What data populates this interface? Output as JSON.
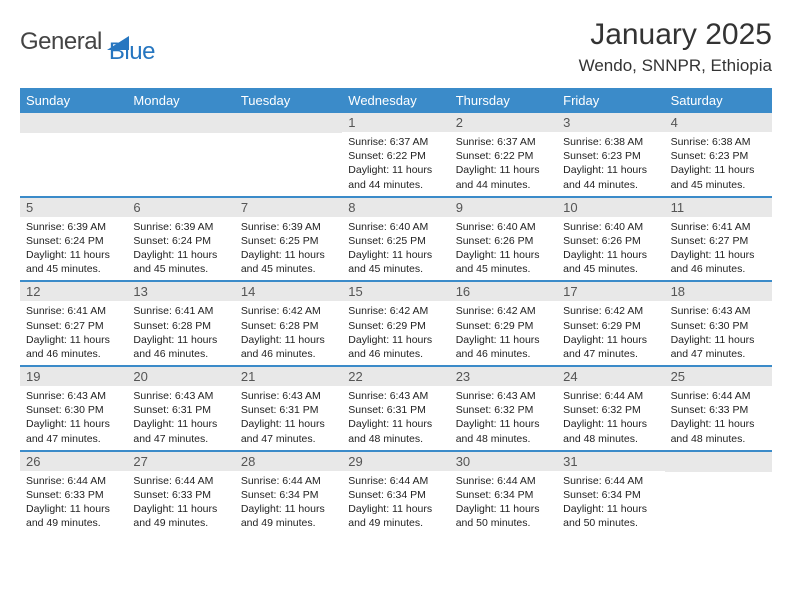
{
  "logo": {
    "text1": "General",
    "text2": "Blue"
  },
  "title": "January 2025",
  "location": "Wendo, SNNPR, Ethiopia",
  "weekdays": [
    "Sunday",
    "Monday",
    "Tuesday",
    "Wednesday",
    "Thursday",
    "Friday",
    "Saturday"
  ],
  "colors": {
    "header_bg": "#3b8bc9",
    "daynum_bg": "#e8e8e8",
    "rule": "#3b8bc9",
    "logo_blue": "#2676c0"
  },
  "weeks": [
    [
      null,
      null,
      null,
      {
        "d": "1",
        "sr": "6:37 AM",
        "ss": "6:22 PM",
        "dl": "11 hours and 44 minutes."
      },
      {
        "d": "2",
        "sr": "6:37 AM",
        "ss": "6:22 PM",
        "dl": "11 hours and 44 minutes."
      },
      {
        "d": "3",
        "sr": "6:38 AM",
        "ss": "6:23 PM",
        "dl": "11 hours and 44 minutes."
      },
      {
        "d": "4",
        "sr": "6:38 AM",
        "ss": "6:23 PM",
        "dl": "11 hours and 45 minutes."
      }
    ],
    [
      {
        "d": "5",
        "sr": "6:39 AM",
        "ss": "6:24 PM",
        "dl": "11 hours and 45 minutes."
      },
      {
        "d": "6",
        "sr": "6:39 AM",
        "ss": "6:24 PM",
        "dl": "11 hours and 45 minutes."
      },
      {
        "d": "7",
        "sr": "6:39 AM",
        "ss": "6:25 PM",
        "dl": "11 hours and 45 minutes."
      },
      {
        "d": "8",
        "sr": "6:40 AM",
        "ss": "6:25 PM",
        "dl": "11 hours and 45 minutes."
      },
      {
        "d": "9",
        "sr": "6:40 AM",
        "ss": "6:26 PM",
        "dl": "11 hours and 45 minutes."
      },
      {
        "d": "10",
        "sr": "6:40 AM",
        "ss": "6:26 PM",
        "dl": "11 hours and 45 minutes."
      },
      {
        "d": "11",
        "sr": "6:41 AM",
        "ss": "6:27 PM",
        "dl": "11 hours and 46 minutes."
      }
    ],
    [
      {
        "d": "12",
        "sr": "6:41 AM",
        "ss": "6:27 PM",
        "dl": "11 hours and 46 minutes."
      },
      {
        "d": "13",
        "sr": "6:41 AM",
        "ss": "6:28 PM",
        "dl": "11 hours and 46 minutes."
      },
      {
        "d": "14",
        "sr": "6:42 AM",
        "ss": "6:28 PM",
        "dl": "11 hours and 46 minutes."
      },
      {
        "d": "15",
        "sr": "6:42 AM",
        "ss": "6:29 PM",
        "dl": "11 hours and 46 minutes."
      },
      {
        "d": "16",
        "sr": "6:42 AM",
        "ss": "6:29 PM",
        "dl": "11 hours and 46 minutes."
      },
      {
        "d": "17",
        "sr": "6:42 AM",
        "ss": "6:29 PM",
        "dl": "11 hours and 47 minutes."
      },
      {
        "d": "18",
        "sr": "6:43 AM",
        "ss": "6:30 PM",
        "dl": "11 hours and 47 minutes."
      }
    ],
    [
      {
        "d": "19",
        "sr": "6:43 AM",
        "ss": "6:30 PM",
        "dl": "11 hours and 47 minutes."
      },
      {
        "d": "20",
        "sr": "6:43 AM",
        "ss": "6:31 PM",
        "dl": "11 hours and 47 minutes."
      },
      {
        "d": "21",
        "sr": "6:43 AM",
        "ss": "6:31 PM",
        "dl": "11 hours and 47 minutes."
      },
      {
        "d": "22",
        "sr": "6:43 AM",
        "ss": "6:31 PM",
        "dl": "11 hours and 48 minutes."
      },
      {
        "d": "23",
        "sr": "6:43 AM",
        "ss": "6:32 PM",
        "dl": "11 hours and 48 minutes."
      },
      {
        "d": "24",
        "sr": "6:44 AM",
        "ss": "6:32 PM",
        "dl": "11 hours and 48 minutes."
      },
      {
        "d": "25",
        "sr": "6:44 AM",
        "ss": "6:33 PM",
        "dl": "11 hours and 48 minutes."
      }
    ],
    [
      {
        "d": "26",
        "sr": "6:44 AM",
        "ss": "6:33 PM",
        "dl": "11 hours and 49 minutes."
      },
      {
        "d": "27",
        "sr": "6:44 AM",
        "ss": "6:33 PM",
        "dl": "11 hours and 49 minutes."
      },
      {
        "d": "28",
        "sr": "6:44 AM",
        "ss": "6:34 PM",
        "dl": "11 hours and 49 minutes."
      },
      {
        "d": "29",
        "sr": "6:44 AM",
        "ss": "6:34 PM",
        "dl": "11 hours and 49 minutes."
      },
      {
        "d": "30",
        "sr": "6:44 AM",
        "ss": "6:34 PM",
        "dl": "11 hours and 50 minutes."
      },
      {
        "d": "31",
        "sr": "6:44 AM",
        "ss": "6:34 PM",
        "dl": "11 hours and 50 minutes."
      },
      null
    ]
  ],
  "labels": {
    "sunrise": "Sunrise:",
    "sunset": "Sunset:",
    "daylight": "Daylight:"
  }
}
